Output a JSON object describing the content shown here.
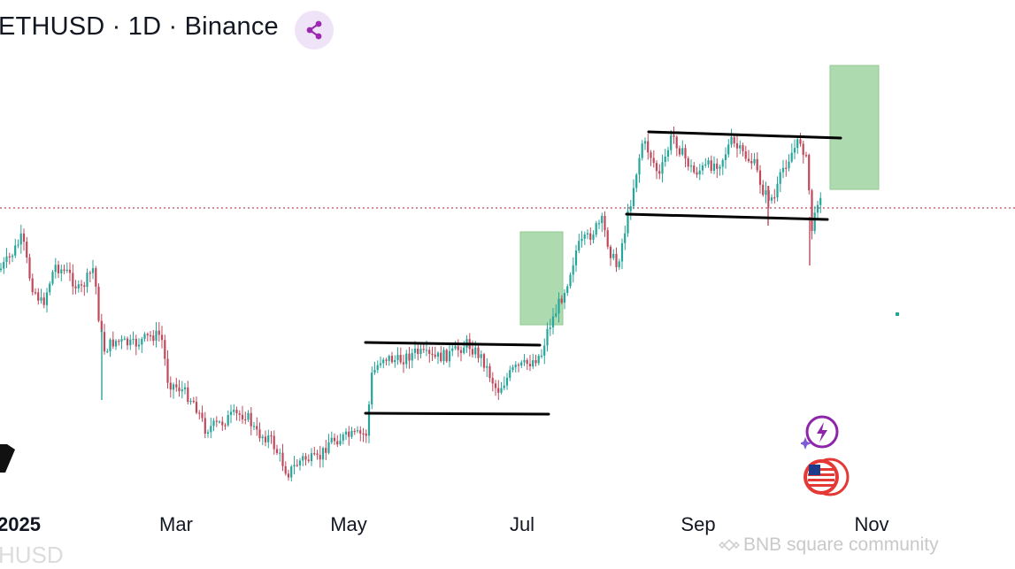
{
  "header": {
    "title": "ETHUSD · 1D · Binance",
    "share_icon": "share-nodes-icon"
  },
  "colors": {
    "up": "#26a69a",
    "down": "#c0485a",
    "target_box": "#a5d6a7",
    "level_line": "#000000",
    "current_price_line": "#c0485a"
  },
  "chart_data": {
    "type": "candlestick",
    "title": "ETHUSD · 1D · Binance",
    "x_tick_labels": [
      "2025",
      "Mar",
      "May",
      "Jul",
      "Sep",
      "Nov"
    ],
    "y_axis_labels": "not shown",
    "grid": false,
    "trend_summary": "Decline from January into an April low, consolidation range in May–June, breakout in July, upper range from mid-August to October with a retest of range support",
    "annotations": [
      {
        "type": "range-resistance",
        "period": "May–Jun"
      },
      {
        "type": "range-support",
        "period": "May–Jun"
      },
      {
        "type": "target-box",
        "period": "early Jul"
      },
      {
        "type": "range-resistance",
        "period": "mid Aug–mid Oct"
      },
      {
        "type": "range-support",
        "period": "Jul–mid Oct"
      },
      {
        "type": "target-box",
        "period": "mid–late Oct"
      },
      {
        "type": "current-price-line",
        "style": "dotted"
      }
    ]
  },
  "watermark": {
    "text": "BNB square community"
  },
  "ghost_label": {
    "text": "HUSD"
  },
  "badges": [
    {
      "name": "spark-bolt-icon"
    },
    {
      "name": "us-flag-icon"
    }
  ]
}
